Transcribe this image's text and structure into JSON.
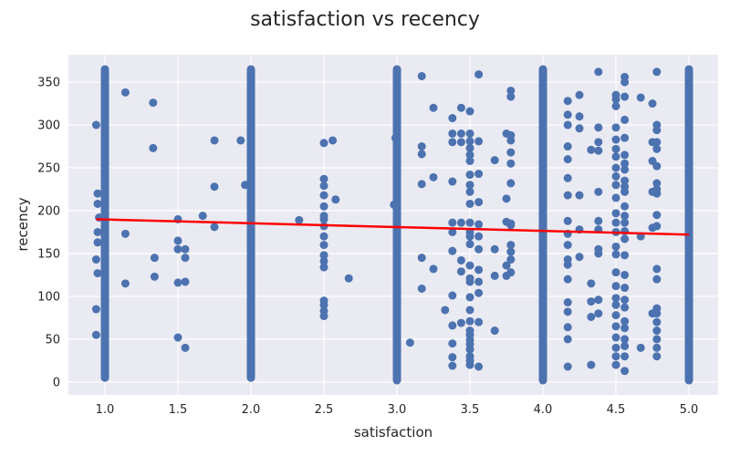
{
  "chart_data": {
    "type": "scatter",
    "title": "satisfaction vs recency",
    "xlabel": "satisfaction",
    "ylabel": "recency",
    "xlim": [
      0.75,
      5.2
    ],
    "ylim": [
      -15,
      382
    ],
    "x_ticks": [
      1.0,
      1.5,
      2.0,
      2.5,
      3.0,
      3.5,
      4.0,
      4.5,
      5.0
    ],
    "x_tick_labels": [
      "1.0",
      "1.5",
      "2.0",
      "2.5",
      "3.0",
      "3.5",
      "4.0",
      "4.5",
      "5.0"
    ],
    "y_ticks": [
      0,
      50,
      100,
      150,
      200,
      250,
      300,
      350
    ],
    "y_tick_labels": [
      "0",
      "50",
      "100",
      "150",
      "200",
      "250",
      "300",
      "350"
    ],
    "grid": true,
    "colors": {
      "points": "#4c72b0",
      "trend": "#ff0000",
      "background": "#eaeaf2",
      "grid": "#ffffff"
    },
    "dense_columns": [
      {
        "x": 1.0,
        "y_min": 5,
        "y_max": 365
      },
      {
        "x": 2.0,
        "y_min": 5,
        "y_max": 365
      },
      {
        "x": 3.0,
        "y_min": 2,
        "y_max": 365
      },
      {
        "x": 4.0,
        "y_min": 2,
        "y_max": 365
      },
      {
        "x": 5.0,
        "y_min": 2,
        "y_max": 365
      }
    ],
    "points": [
      [
        0.94,
        300
      ],
      [
        0.95,
        220
      ],
      [
        0.95,
        208
      ],
      [
        0.96,
        192
      ],
      [
        0.95,
        175
      ],
      [
        0.95,
        163
      ],
      [
        0.94,
        143
      ],
      [
        0.95,
        127
      ],
      [
        0.94,
        85
      ],
      [
        0.94,
        55
      ],
      [
        1.14,
        338
      ],
      [
        1.14,
        173
      ],
      [
        1.14,
        115
      ],
      [
        1.33,
        326
      ],
      [
        1.33,
        273
      ],
      [
        1.34,
        145
      ],
      [
        1.34,
        123
      ],
      [
        1.5,
        190
      ],
      [
        1.5,
        165
      ],
      [
        1.5,
        155
      ],
      [
        1.5,
        116
      ],
      [
        1.5,
        52
      ],
      [
        1.55,
        155
      ],
      [
        1.55,
        145
      ],
      [
        1.55,
        117
      ],
      [
        1.55,
        40
      ],
      [
        1.67,
        194
      ],
      [
        1.75,
        282
      ],
      [
        1.75,
        228
      ],
      [
        1.75,
        181
      ],
      [
        1.93,
        282
      ],
      [
        1.96,
        230
      ],
      [
        2.33,
        189
      ],
      [
        2.5,
        279
      ],
      [
        2.5,
        237
      ],
      [
        2.5,
        229
      ],
      [
        2.5,
        218
      ],
      [
        2.5,
        205
      ],
      [
        2.5,
        194
      ],
      [
        2.5,
        190
      ],
      [
        2.5,
        182
      ],
      [
        2.5,
        170
      ],
      [
        2.5,
        160
      ],
      [
        2.5,
        148
      ],
      [
        2.5,
        141
      ],
      [
        2.5,
        134
      ],
      [
        2.5,
        95
      ],
      [
        2.5,
        90
      ],
      [
        2.5,
        83
      ],
      [
        2.5,
        77
      ],
      [
        2.56,
        282
      ],
      [
        2.58,
        213
      ],
      [
        2.67,
        121
      ],
      [
        2.99,
        285
      ],
      [
        2.98,
        207
      ],
      [
        3.09,
        46
      ],
      [
        3.17,
        357
      ],
      [
        3.17,
        275
      ],
      [
        3.17,
        266
      ],
      [
        3.17,
        231
      ],
      [
        3.17,
        145
      ],
      [
        3.17,
        109
      ],
      [
        3.25,
        320
      ],
      [
        3.25,
        239
      ],
      [
        3.25,
        132
      ],
      [
        3.33,
        84
      ],
      [
        3.38,
        308
      ],
      [
        3.38,
        290
      ],
      [
        3.38,
        280
      ],
      [
        3.38,
        234
      ],
      [
        3.38,
        186
      ],
      [
        3.38,
        175
      ],
      [
        3.38,
        153
      ],
      [
        3.38,
        101
      ],
      [
        3.38,
        66
      ],
      [
        3.38,
        45
      ],
      [
        3.38,
        29
      ],
      [
        3.38,
        19
      ],
      [
        3.44,
        320
      ],
      [
        3.44,
        290
      ],
      [
        3.44,
        280
      ],
      [
        3.44,
        186
      ],
      [
        3.44,
        142
      ],
      [
        3.44,
        129
      ],
      [
        3.44,
        69
      ],
      [
        3.5,
        316
      ],
      [
        3.5,
        290
      ],
      [
        3.5,
        281
      ],
      [
        3.5,
        273
      ],
      [
        3.5,
        265
      ],
      [
        3.5,
        258
      ],
      [
        3.5,
        242
      ],
      [
        3.5,
        230
      ],
      [
        3.5,
        222
      ],
      [
        3.5,
        208
      ],
      [
        3.5,
        186
      ],
      [
        3.5,
        175
      ],
      [
        3.5,
        170
      ],
      [
        3.5,
        161
      ],
      [
        3.5,
        136
      ],
      [
        3.5,
        121
      ],
      [
        3.5,
        117
      ],
      [
        3.5,
        99
      ],
      [
        3.5,
        84
      ],
      [
        3.5,
        71
      ],
      [
        3.5,
        60
      ],
      [
        3.5,
        55
      ],
      [
        3.5,
        49
      ],
      [
        3.5,
        44
      ],
      [
        3.5,
        38
      ],
      [
        3.5,
        30
      ],
      [
        3.5,
        25
      ],
      [
        3.5,
        20
      ],
      [
        3.56,
        359
      ],
      [
        3.56,
        281
      ],
      [
        3.56,
        243
      ],
      [
        3.56,
        210
      ],
      [
        3.56,
        184
      ],
      [
        3.56,
        170
      ],
      [
        3.56,
        155
      ],
      [
        3.56,
        131
      ],
      [
        3.56,
        117
      ],
      [
        3.56,
        104
      ],
      [
        3.56,
        70
      ],
      [
        3.56,
        18
      ],
      [
        3.67,
        259
      ],
      [
        3.67,
        155
      ],
      [
        3.67,
        124
      ],
      [
        3.67,
        60
      ],
      [
        3.75,
        290
      ],
      [
        3.75,
        214
      ],
      [
        3.75,
        187
      ],
      [
        3.75,
        136
      ],
      [
        3.75,
        124
      ],
      [
        3.78,
        340
      ],
      [
        3.78,
        333
      ],
      [
        3.78,
        288
      ],
      [
        3.78,
        282
      ],
      [
        3.78,
        268
      ],
      [
        3.78,
        255
      ],
      [
        3.78,
        232
      ],
      [
        3.78,
        185
      ],
      [
        3.78,
        183
      ],
      [
        3.78,
        160
      ],
      [
        3.78,
        152
      ],
      [
        3.78,
        143
      ],
      [
        3.78,
        128
      ],
      [
        4.17,
        328
      ],
      [
        4.17,
        312
      ],
      [
        4.17,
        300
      ],
      [
        4.17,
        275
      ],
      [
        4.17,
        260
      ],
      [
        4.17,
        238
      ],
      [
        4.17,
        218
      ],
      [
        4.17,
        188
      ],
      [
        4.17,
        173
      ],
      [
        4.17,
        160
      ],
      [
        4.17,
        143
      ],
      [
        4.17,
        137
      ],
      [
        4.17,
        120
      ],
      [
        4.17,
        93
      ],
      [
        4.17,
        82
      ],
      [
        4.17,
        64
      ],
      [
        4.17,
        50
      ],
      [
        4.17,
        18
      ],
      [
        4.25,
        335
      ],
      [
        4.25,
        310
      ],
      [
        4.25,
        296
      ],
      [
        4.25,
        218
      ],
      [
        4.25,
        178
      ],
      [
        4.25,
        146
      ],
      [
        4.33,
        271
      ],
      [
        4.33,
        115
      ],
      [
        4.33,
        94
      ],
      [
        4.33,
        76
      ],
      [
        4.33,
        20
      ],
      [
        4.38,
        362
      ],
      [
        4.38,
        297
      ],
      [
        4.38,
        280
      ],
      [
        4.38,
        270
      ],
      [
        4.38,
        222
      ],
      [
        4.38,
        188
      ],
      [
        4.38,
        178
      ],
      [
        4.38,
        155
      ],
      [
        4.38,
        150
      ],
      [
        4.38,
        96
      ],
      [
        4.38,
        80
      ],
      [
        4.5,
        335
      ],
      [
        4.5,
        330
      ],
      [
        4.5,
        322
      ],
      [
        4.5,
        297
      ],
      [
        4.5,
        283
      ],
      [
        4.5,
        272
      ],
      [
        4.5,
        263
      ],
      [
        4.5,
        250
      ],
      [
        4.5,
        240
      ],
      [
        4.5,
        230
      ],
      [
        4.5,
        215
      ],
      [
        4.5,
        197
      ],
      [
        4.5,
        186
      ],
      [
        4.5,
        175
      ],
      [
        4.5,
        158
      ],
      [
        4.5,
        149
      ],
      [
        4.5,
        128
      ],
      [
        4.5,
        112
      ],
      [
        4.5,
        98
      ],
      [
        4.5,
        90
      ],
      [
        4.5,
        78
      ],
      [
        4.5,
        65
      ],
      [
        4.5,
        52
      ],
      [
        4.5,
        40
      ],
      [
        4.5,
        30
      ],
      [
        4.5,
        20
      ],
      [
        4.56,
        356
      ],
      [
        4.56,
        350
      ],
      [
        4.56,
        333
      ],
      [
        4.56,
        306
      ],
      [
        4.56,
        285
      ],
      [
        4.56,
        265
      ],
      [
        4.56,
        255
      ],
      [
        4.56,
        248
      ],
      [
        4.56,
        235
      ],
      [
        4.56,
        228
      ],
      [
        4.56,
        222
      ],
      [
        4.56,
        205
      ],
      [
        4.56,
        194
      ],
      [
        4.56,
        186
      ],
      [
        4.56,
        176
      ],
      [
        4.56,
        167
      ],
      [
        4.56,
        148
      ],
      [
        4.56,
        125
      ],
      [
        4.56,
        110
      ],
      [
        4.56,
        96
      ],
      [
        4.56,
        87
      ],
      [
        4.56,
        71
      ],
      [
        4.56,
        63
      ],
      [
        4.56,
        50
      ],
      [
        4.56,
        42
      ],
      [
        4.56,
        30
      ],
      [
        4.56,
        13
      ],
      [
        4.67,
        332
      ],
      [
        4.67,
        170
      ],
      [
        4.67,
        40
      ],
      [
        4.75,
        325
      ],
      [
        4.75,
        280
      ],
      [
        4.75,
        258
      ],
      [
        4.75,
        222
      ],
      [
        4.75,
        180
      ],
      [
        4.75,
        80
      ],
      [
        4.78,
        362
      ],
      [
        4.78,
        300
      ],
      [
        4.78,
        294
      ],
      [
        4.78,
        280
      ],
      [
        4.78,
        272
      ],
      [
        4.78,
        252
      ],
      [
        4.78,
        232
      ],
      [
        4.78,
        225
      ],
      [
        4.78,
        220
      ],
      [
        4.78,
        195
      ],
      [
        4.78,
        182
      ],
      [
        4.78,
        132
      ],
      [
        4.78,
        120
      ],
      [
        4.78,
        86
      ],
      [
        4.78,
        80
      ],
      [
        4.78,
        70
      ],
      [
        4.78,
        60
      ],
      [
        4.78,
        50
      ],
      [
        4.78,
        40
      ],
      [
        4.78,
        30
      ]
    ],
    "trend_line": {
      "x": [
        0.94,
        5.0
      ],
      "y": [
        190,
        172
      ]
    }
  }
}
